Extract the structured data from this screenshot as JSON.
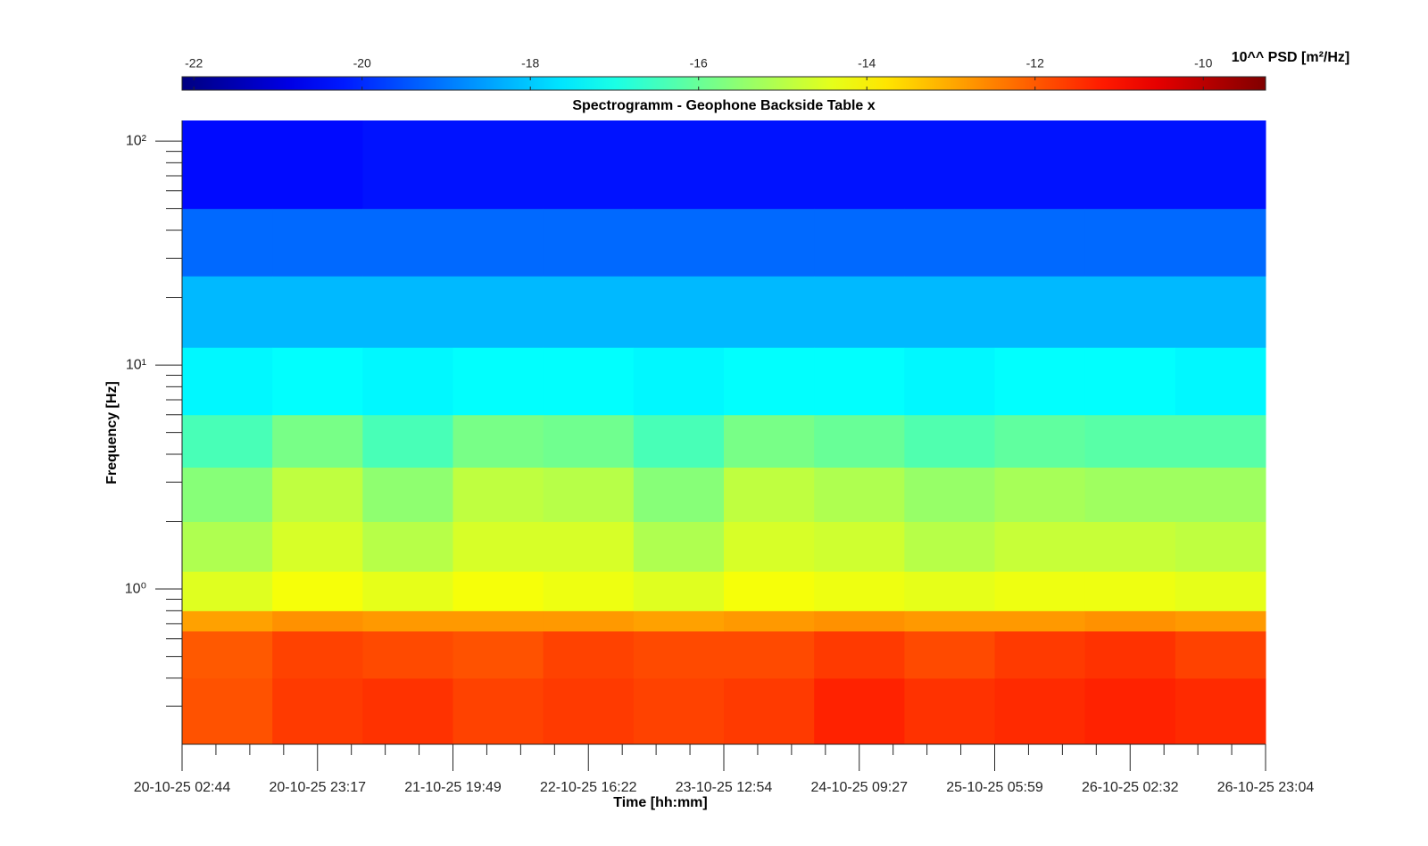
{
  "chart_data": {
    "type": "spectrogram",
    "title": "Spectrogramm - Geophone Backside Table x",
    "xlabel": "Time [hh:mm]",
    "ylabel": "Frequency [Hz]",
    "colorbar_label": "10^^ PSD [m²/Hz]",
    "colormap": "jet",
    "clim": [
      -22.14,
      -9.26
    ],
    "cticks": [
      -22,
      -20,
      -18,
      -16,
      -14,
      -12,
      -10
    ],
    "ylog": true,
    "ylim": [
      0.2027,
      123.6
    ],
    "yticks": [
      {
        "value": 1,
        "label": "10⁰"
      },
      {
        "value": 10,
        "label": "10¹"
      },
      {
        "value": 100,
        "label": "10²"
      }
    ],
    "yminorticks": [
      0.3,
      0.4,
      0.5,
      0.6,
      0.7,
      0.8,
      0.9,
      2,
      3,
      4,
      5,
      6,
      7,
      8,
      9,
      20,
      30,
      40,
      50,
      60,
      70,
      80,
      90
    ],
    "xtick_labels": [
      "20-10-25 02:44",
      "20-10-25 23:17",
      "21-10-25 19:49",
      "22-10-25 16:22",
      "23-10-25 12:54",
      "24-10-25 09:27",
      "25-10-25 05:59",
      "26-10-25 02:32",
      "26-10-25 23:04"
    ],
    "y_edges": [
      0.2027,
      0.4,
      0.65,
      0.8,
      1.2,
      2,
      3.5,
      6,
      12,
      25,
      50,
      123.6
    ],
    "values": [
      [
        -11.9,
        -12.0,
        -12.9,
        -14.5,
        -15.1,
        -15.6,
        -16.4,
        -17.4,
        -18.2,
        -19.2,
        -20.4
      ],
      [
        -11.6,
        -11.7,
        -12.7,
        -14.2,
        -14.6,
        -14.9,
        -15.8,
        -17.3,
        -18.2,
        -19.2,
        -20.4
      ],
      [
        -11.5,
        -11.8,
        -12.8,
        -14.4,
        -15.0,
        -15.5,
        -16.4,
        -17.4,
        -18.2,
        -19.2,
        -20.3
      ],
      [
        -11.7,
        -11.9,
        -12.8,
        -14.2,
        -14.6,
        -14.9,
        -15.8,
        -17.3,
        -18.2,
        -19.2,
        -20.3
      ],
      [
        -11.6,
        -11.7,
        -12.8,
        -14.3,
        -14.6,
        -15.0,
        -15.9,
        -17.3,
        -18.2,
        -19.2,
        -20.3
      ],
      [
        -11.7,
        -11.8,
        -12.9,
        -14.5,
        -15.1,
        -15.6,
        -16.4,
        -17.4,
        -18.2,
        -19.2,
        -20.3
      ],
      [
        -11.6,
        -11.8,
        -12.8,
        -14.2,
        -14.6,
        -14.9,
        -15.8,
        -17.3,
        -18.2,
        -19.2,
        -20.3
      ],
      [
        -11.3,
        -11.6,
        -12.7,
        -14.3,
        -14.7,
        -15.1,
        -16.0,
        -17.3,
        -18.2,
        -19.2,
        -20.3
      ],
      [
        -11.5,
        -11.8,
        -12.8,
        -14.4,
        -15.0,
        -15.4,
        -16.3,
        -17.4,
        -18.2,
        -19.2,
        -20.3
      ],
      [
        -11.4,
        -11.6,
        -12.8,
        -14.3,
        -14.8,
        -15.2,
        -16.1,
        -17.3,
        -18.2,
        -19.2,
        -20.3
      ],
      [
        -11.3,
        -11.5,
        -12.7,
        -14.3,
        -14.8,
        -15.3,
        -16.2,
        -17.3,
        -18.2,
        -19.2,
        -20.3
      ],
      [
        -11.4,
        -11.7,
        -12.8,
        -14.4,
        -14.9,
        -15.3,
        -16.2,
        -17.4,
        -18.2,
        -19.2,
        -20.3
      ]
    ]
  }
}
